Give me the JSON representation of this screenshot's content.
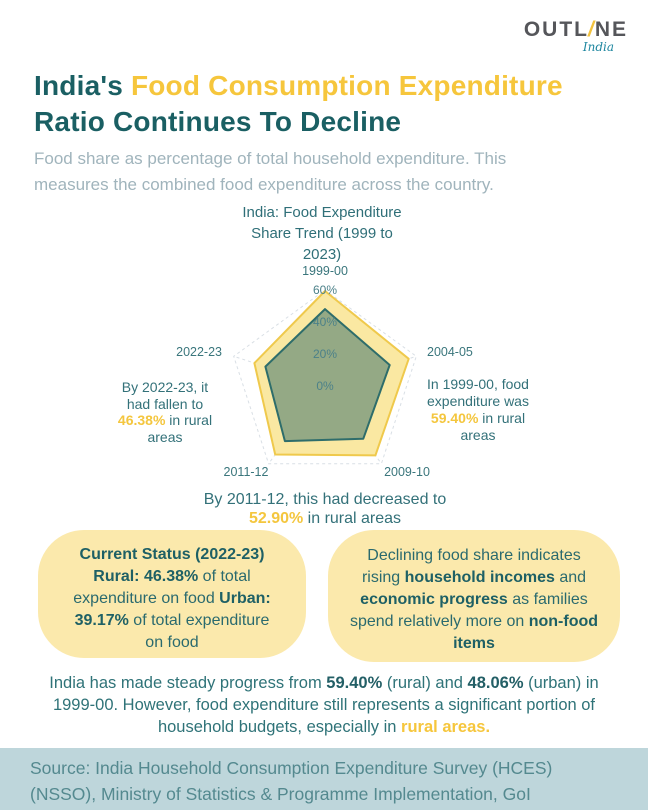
{
  "logo": {
    "word_start": "OUTL",
    "slash": "/",
    "word_end": "NE",
    "subtext": "India"
  },
  "header": {
    "title1_teal": "India's ",
    "title1_yellow": "Food Consumption Expenditure",
    "title2": "Ratio Continues To Decline",
    "subtitle": "Food share as percentage of total household expenditure. This measures the combined food expenditure across the country."
  },
  "chart_data": {
    "type": "radar",
    "title": "India: Food Expenditure Share Trend (1999 to 2023)",
    "categories": [
      "1999-00",
      "2004-05",
      "2009-10",
      "2011-12",
      "2022-23"
    ],
    "series": [
      {
        "name": "Rural",
        "values": [
          59.4,
          55.0,
          53.6,
          52.9,
          46.38
        ],
        "fill": "#FAE8A2",
        "stroke": "#EFC94C"
      },
      {
        "name": "Urban",
        "values": [
          48.06,
          42.5,
          40.7,
          42.6,
          39.17
        ],
        "fill": "rgba(45,106,104,0.5)",
        "stroke": "#2E6D6B"
      }
    ],
    "scale": {
      "min": 0,
      "max": 60,
      "ticks": [
        60,
        40,
        20,
        0
      ],
      "tick_suffix": "%"
    },
    "unit": "%",
    "grid": {
      "color": "#D9DFE5",
      "dashed": true
    },
    "tick_color": "#4C8189",
    "legend": "none"
  },
  "annotations": {
    "right": {
      "pre": "In 1999-00, food expenditure was ",
      "value": "59.40%",
      "post": " in rural areas"
    },
    "left": {
      "pre": "By 2022-23, it had fallen to ",
      "value": "46.38%",
      "post": " in rural areas"
    },
    "bottom": {
      "pre": "By 2011-12, this had decreased to ",
      "value": "52.90%",
      "post": " in rural areas"
    }
  },
  "boxes": {
    "left": {
      "heading": "Current Status (2022-23)",
      "rural_bold": "Rural: 46.38%",
      "rural_rest": " of total expenditure on food",
      "urban_bold": "Urban: 39.17%",
      "urban_rest": " of total expenditure on food"
    },
    "right": {
      "s1": "Declining food share indicates rising ",
      "b1": "household incomes",
      "s2": " and ",
      "b2": "economic progress",
      "s3": " as families spend relatively more on ",
      "b3": "non-food items"
    }
  },
  "summary": {
    "s1": "India has made steady progress from ",
    "b1": "59.40%",
    "s2": " (rural) and ",
    "b2": "48.06%",
    "s3": " (urban) in 1999-00. However, food expenditure still represents a significant portion of household budgets, especially in ",
    "y1": "rural areas."
  },
  "footer": {
    "source": "Source: India Household Consumption Expenditure Survey (HCES) (NSSO), Ministry of Statistics & Programme Implementation, GoI"
  },
  "colors": {
    "teal_dark": "#1A5F63",
    "accent_yellow": "#F6C63C",
    "subtitle_gray": "#A0B4BC",
    "box_yellow": "#FBE9AC",
    "footer_blue": "#BED6DB",
    "footer_text": "#54898F"
  }
}
